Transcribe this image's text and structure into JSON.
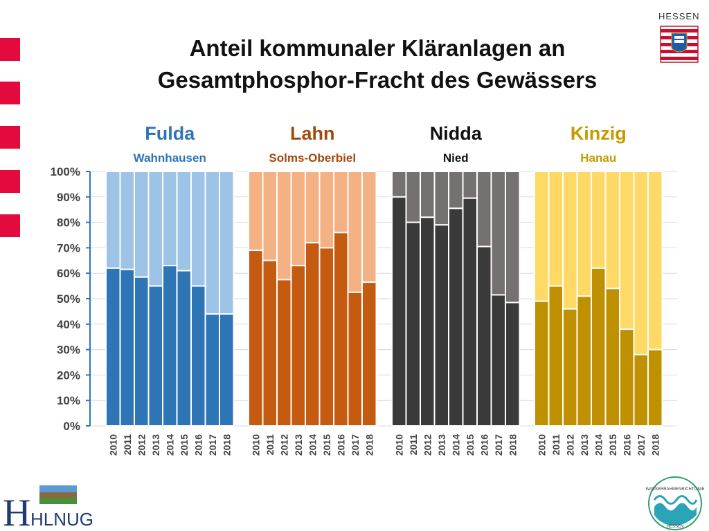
{
  "title_line1": "Anteil kommunaler Kläranlagen an",
  "title_line2": "Gesamtphosphor-Fracht des Gewässers",
  "hessen_label": "HESSEN",
  "logo_left_text": "HLNUG",
  "badge_text_top": "WASSERRAHMENRICHTLINIE",
  "badge_text_bottom": "HESSEN",
  "chart_data": {
    "type": "bar",
    "stacked": true,
    "yticks": [
      "0%",
      "10%",
      "20%",
      "30%",
      "40%",
      "50%",
      "60%",
      "70%",
      "80%",
      "90%",
      "100%"
    ],
    "ylim": [
      0,
      100
    ],
    "grid": true,
    "groups": [
      {
        "river": "Fulda",
        "station": "Wahnhausen",
        "color_dark": "#2e75b6",
        "color_light": "#9dc3e6",
        "label_color": "#2e75b6",
        "categories": [
          "2010",
          "2011",
          "2012",
          "2013",
          "2014",
          "2015",
          "2016",
          "2017",
          "2018"
        ],
        "values": [
          62,
          61.5,
          58.5,
          55,
          63,
          61,
          55,
          44,
          44
        ]
      },
      {
        "river": "Lahn",
        "station": "Solms-Oberbiel",
        "color_dark": "#c55a11",
        "color_light": "#f4b183",
        "label_color": "#a04a10",
        "categories": [
          "2010",
          "2011",
          "2012",
          "2013",
          "2014",
          "2015",
          "2016",
          "2017",
          "2018"
        ],
        "values": [
          69,
          65,
          57.5,
          63,
          72,
          70,
          76,
          52.5,
          56.5
        ]
      },
      {
        "river": "Nidda",
        "station": "Nied",
        "color_dark": "#3a3a3a",
        "color_light": "#767171",
        "label_color": "#111111",
        "categories": [
          "2010",
          "2011",
          "2012",
          "2013",
          "2014",
          "2015",
          "2016",
          "2017",
          "2018"
        ],
        "values": [
          90,
          80,
          82,
          79,
          85.5,
          89.5,
          70.5,
          51.5,
          48.5
        ]
      },
      {
        "river": "Kinzig",
        "station": "Hanau",
        "color_dark": "#bf9000",
        "color_light": "#ffd966",
        "label_color": "#c49a00",
        "categories": [
          "2010",
          "2011",
          "2012",
          "2013",
          "2014",
          "2015",
          "2016",
          "2017",
          "2018"
        ],
        "values": [
          49,
          55,
          46,
          51,
          62,
          54,
          38,
          28,
          30
        ]
      }
    ]
  }
}
